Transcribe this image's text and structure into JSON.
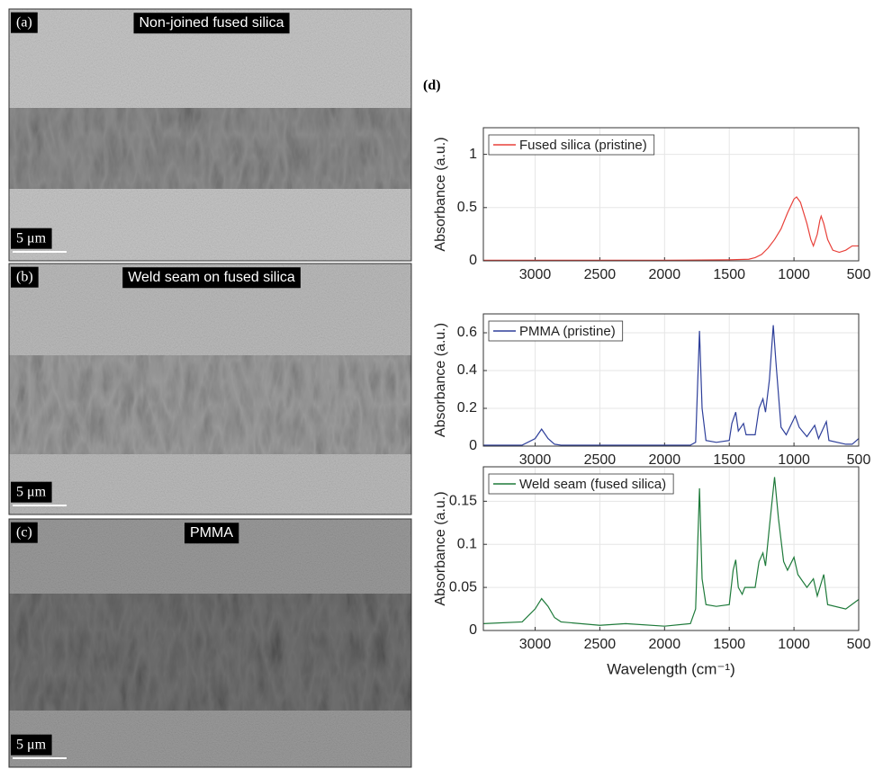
{
  "panels": [
    {
      "label": "(a)",
      "caption": "Non-joined fused silica",
      "scale_bar": "5 μm"
    },
    {
      "label": "(b)",
      "caption": "Weld seam on fused silica",
      "scale_bar": "5 μm"
    },
    {
      "label": "(c)",
      "caption": "PMMA",
      "scale_bar": "5 μm"
    }
  ],
  "chart_panel_label": "(d)",
  "chart_data": [
    {
      "type": "line",
      "y_label": "Absorbance (a.u.)",
      "xlim": [
        3400,
        500
      ],
      "ylim": [
        0,
        1.25
      ],
      "xticks": [
        3000,
        2500,
        2000,
        1500,
        1000,
        500
      ],
      "yticks": [
        0,
        0.5,
        1
      ],
      "grid": true,
      "legend": "upper-left",
      "x": [
        3400,
        3000,
        2500,
        2000,
        1500,
        1350,
        1300,
        1250,
        1200,
        1150,
        1100,
        1050,
        1000,
        980,
        950,
        900,
        870,
        850,
        820,
        800,
        790,
        770,
        740,
        700,
        650,
        600,
        550,
        500
      ],
      "series": [
        {
          "name": "Fused silica (pristine)",
          "color": "#e8413a",
          "values": [
            0.005,
            0.005,
            0.005,
            0.005,
            0.01,
            0.015,
            0.03,
            0.06,
            0.12,
            0.2,
            0.3,
            0.45,
            0.58,
            0.6,
            0.55,
            0.35,
            0.2,
            0.14,
            0.25,
            0.38,
            0.42,
            0.35,
            0.2,
            0.1,
            0.08,
            0.1,
            0.14,
            0.14
          ]
        }
      ]
    },
    {
      "type": "line",
      "y_label": "Absorbance (a.u.)",
      "xlim": [
        3400,
        500
      ],
      "ylim": [
        0,
        0.7
      ],
      "xticks": [
        3000,
        2500,
        2000,
        1500,
        1000,
        500
      ],
      "yticks": [
        0,
        0.2,
        0.4,
        0.6
      ],
      "grid": true,
      "legend": "upper-left",
      "x": [
        3400,
        3100,
        3000,
        2950,
        2900,
        2850,
        2800,
        2000,
        1800,
        1760,
        1730,
        1710,
        1680,
        1600,
        1500,
        1480,
        1450,
        1430,
        1390,
        1370,
        1300,
        1270,
        1240,
        1220,
        1190,
        1160,
        1140,
        1100,
        1060,
        990,
        960,
        900,
        840,
        810,
        750,
        730,
        600,
        550,
        500
      ],
      "series": [
        {
          "name": "PMMA (pristine)",
          "color": "#2e3f9a",
          "values": [
            0.005,
            0.005,
            0.04,
            0.09,
            0.04,
            0.01,
            0.005,
            0.005,
            0.005,
            0.02,
            0.61,
            0.2,
            0.03,
            0.02,
            0.03,
            0.12,
            0.18,
            0.08,
            0.12,
            0.06,
            0.06,
            0.2,
            0.25,
            0.18,
            0.35,
            0.64,
            0.45,
            0.1,
            0.06,
            0.16,
            0.1,
            0.05,
            0.11,
            0.04,
            0.13,
            0.03,
            0.01,
            0.01,
            0.04
          ]
        }
      ]
    },
    {
      "type": "line",
      "y_label": "Absorbance (a.u.)",
      "x_label": "Wavelength (cm⁻¹)",
      "xlim": [
        3400,
        500
      ],
      "ylim": [
        0,
        0.19
      ],
      "xticks": [
        3000,
        2500,
        2000,
        1500,
        1000,
        500
      ],
      "yticks": [
        0,
        0.05,
        0.1,
        0.15
      ],
      "grid": true,
      "legend": "upper-left",
      "x": [
        3400,
        3100,
        3000,
        2950,
        2900,
        2850,
        2800,
        2500,
        2300,
        2000,
        1800,
        1760,
        1730,
        1710,
        1680,
        1600,
        1500,
        1470,
        1450,
        1430,
        1400,
        1380,
        1300,
        1270,
        1240,
        1220,
        1190,
        1150,
        1120,
        1080,
        1050,
        1000,
        970,
        900,
        850,
        820,
        770,
        740,
        600,
        500
      ],
      "series": [
        {
          "name": "Weld seam (fused silica)",
          "color": "#1e7a3a",
          "values": [
            0.008,
            0.01,
            0.025,
            0.037,
            0.028,
            0.015,
            0.01,
            0.006,
            0.008,
            0.005,
            0.008,
            0.025,
            0.165,
            0.06,
            0.03,
            0.028,
            0.03,
            0.07,
            0.082,
            0.05,
            0.042,
            0.05,
            0.05,
            0.08,
            0.09,
            0.075,
            0.12,
            0.178,
            0.13,
            0.08,
            0.07,
            0.085,
            0.065,
            0.05,
            0.06,
            0.04,
            0.065,
            0.03,
            0.025,
            0.036
          ]
        }
      ]
    }
  ]
}
